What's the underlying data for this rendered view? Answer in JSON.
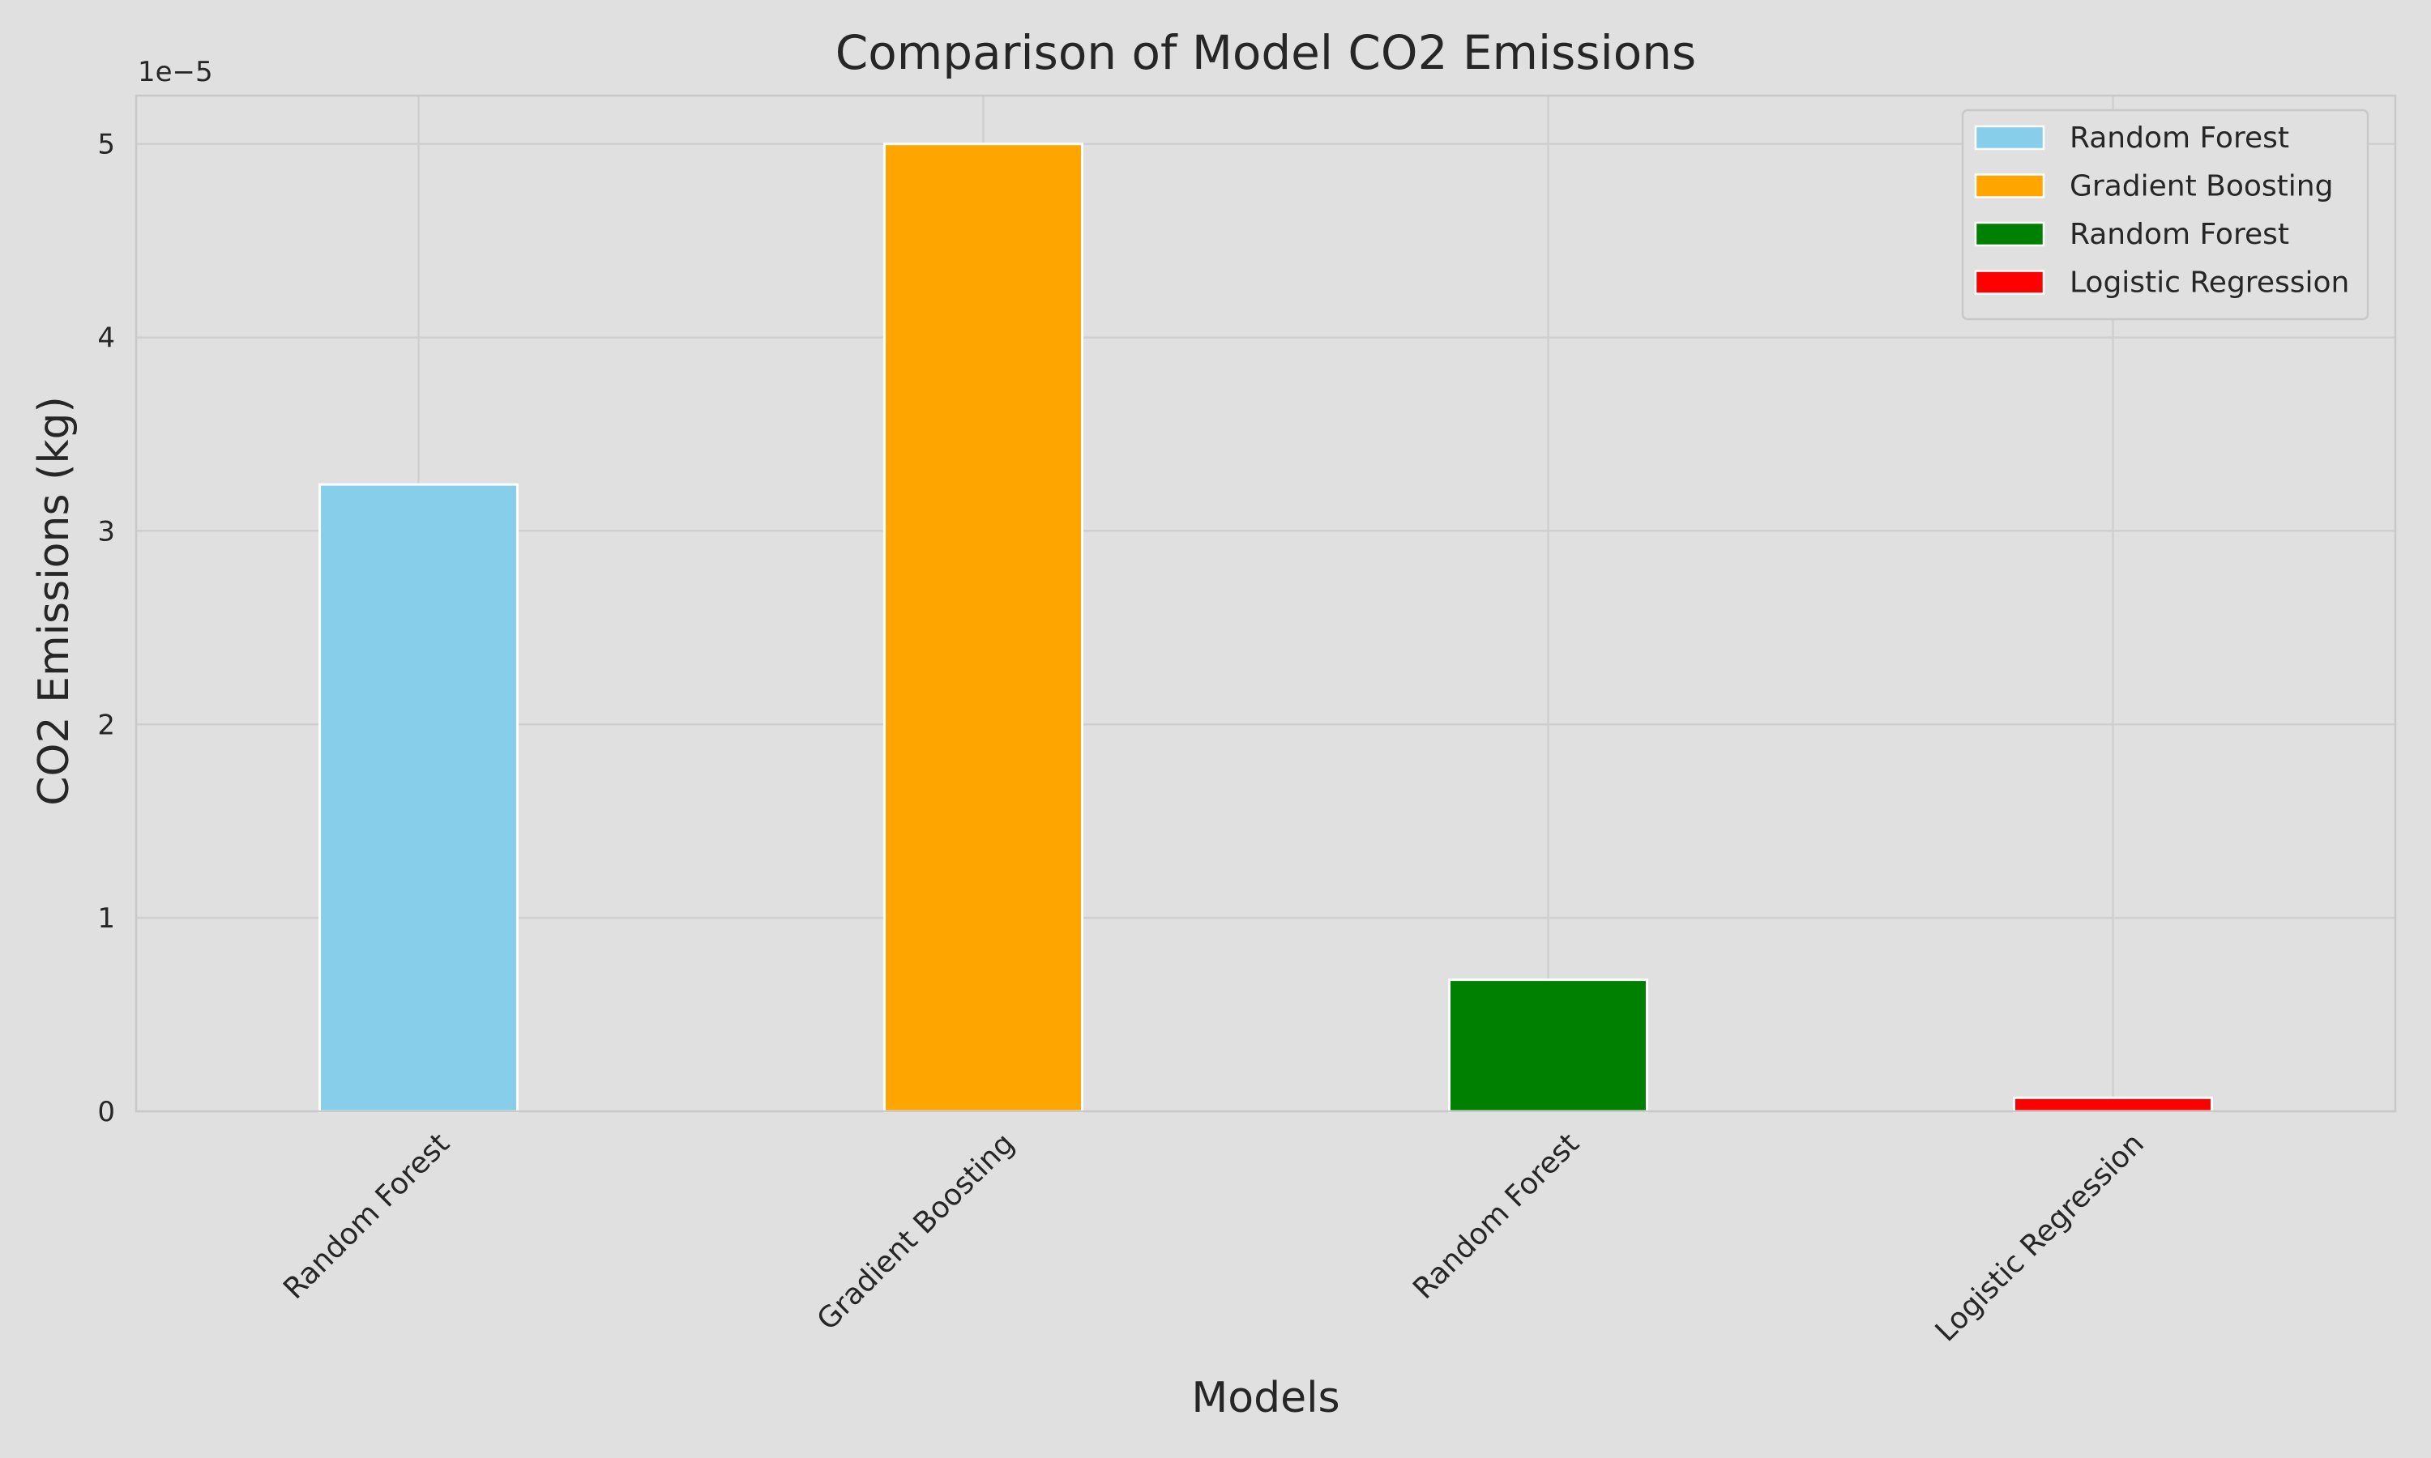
{
  "chart_data": {
    "type": "bar",
    "title": "Comparison of Model CO2 Emissions",
    "xlabel": "Models",
    "ylabel": "CO2 Emissions (kg)",
    "y_multiplier_label": "1e−5",
    "categories": [
      "Random Forest",
      "Gradient Boosting",
      "Random Forest",
      "Logistic Regression"
    ],
    "values": [
      3.24e-05,
      5e-05,
      6.8e-06,
      7e-07
    ],
    "colors": [
      "#87ceeb",
      "#ffa500",
      "#008000",
      "#ff0000"
    ],
    "ylim": [
      0,
      5.25e-05
    ],
    "yticks": [
      0,
      1e-05,
      2e-05,
      3e-05,
      4e-05,
      5e-05
    ],
    "ytick_labels": [
      "0",
      "1",
      "2",
      "3",
      "4",
      "5"
    ],
    "grid": true,
    "legend": {
      "position": "top-right",
      "entries": [
        "Random Forest",
        "Gradient Boosting",
        "Random Forest",
        "Logistic Regression"
      ]
    }
  }
}
